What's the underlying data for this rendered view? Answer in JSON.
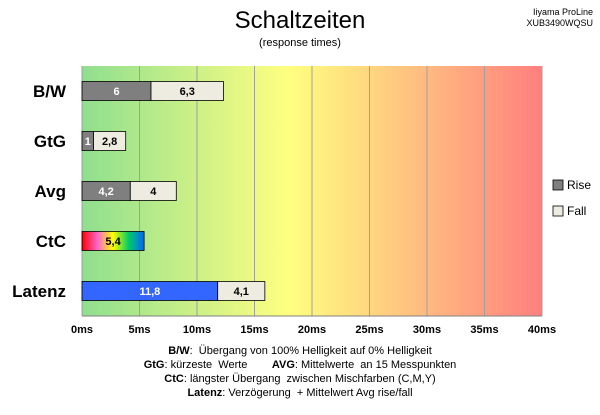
{
  "chart_data": {
    "type": "bar",
    "orientation": "horizontal",
    "stacked": true,
    "title": "Schaltzeiten",
    "subtitle": "(response times)",
    "model": [
      "Iiyama ProLine",
      "XUB3490WQSU"
    ],
    "categories": [
      "B/W",
      "GtG",
      "Avg",
      "CtC",
      "Latenz"
    ],
    "series": [
      {
        "name": "Rise",
        "values": [
          6,
          1,
          4.2,
          5.4,
          11.8
        ],
        "labels": [
          "6",
          "1",
          "4,2",
          "5,4",
          "11,8"
        ]
      },
      {
        "name": "Fall",
        "values": [
          6.3,
          2.8,
          4,
          null,
          4.1
        ],
        "labels": [
          "6,3",
          "2,8",
          "4",
          "",
          "4,1"
        ]
      }
    ],
    "xlim": [
      0,
      40
    ],
    "xticks": [
      0,
      5,
      10,
      15,
      20,
      25,
      30,
      35,
      40
    ],
    "xtick_labels": [
      "0ms",
      "5ms",
      "10ms",
      "15ms",
      "20ms",
      "25ms",
      "30ms",
      "35ms",
      "40ms"
    ],
    "grid": true,
    "legend_position": "right",
    "colors": {
      "rise": "#7f7f7f",
      "fall": "#eeece1",
      "ctc_gradient": [
        "#ff0000",
        "#ff66cc",
        "#ffff00",
        "#00cc66",
        "#0066ff"
      ],
      "latenz_rise": "#3366ff",
      "bg_gradient": [
        "#8fdf8f",
        "#ffff80",
        "#ff7f7f"
      ]
    },
    "notes": [
      {
        "parts": [
          {
            "b": "B/W"
          },
          {
            "t": ":  Übergang von 100% Helligkeit auf 0% Helligkeit"
          }
        ]
      },
      {
        "parts": [
          {
            "b": "GtG"
          },
          {
            "t": ": kürzeste  Werte        "
          },
          {
            "b": "AVG"
          },
          {
            "t": ": Mittelwerte  an 15 Messpunkten"
          }
        ]
      },
      {
        "parts": [
          {
            "b": "CtC"
          },
          {
            "t": ": längster Übergang  zwischen Mischfarben (C,M,Y)"
          }
        ]
      },
      {
        "parts": [
          {
            "b": "Latenz"
          },
          {
            "t": ": Verzögerung  + Mittelwert Avg rise/fall"
          }
        ]
      }
    ]
  }
}
